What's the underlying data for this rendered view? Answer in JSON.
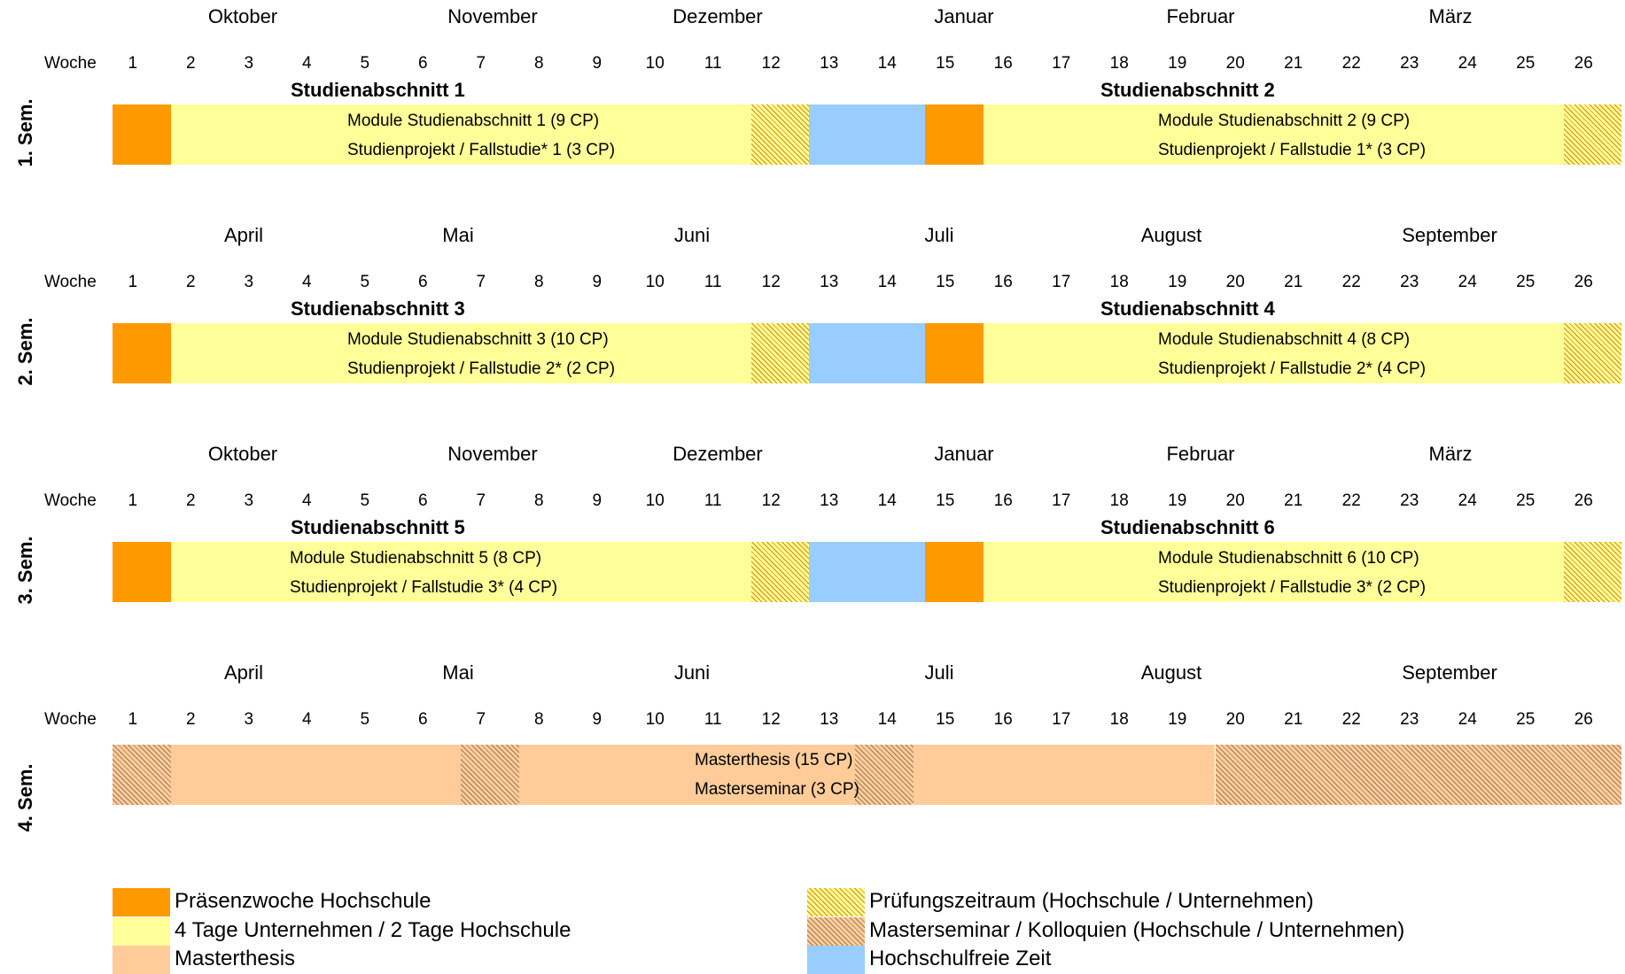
{
  "week_label": "Woche",
  "weeks": [
    "1",
    "2",
    "3",
    "4",
    "5",
    "6",
    "7",
    "8",
    "9",
    "10",
    "11",
    "12",
    "13",
    "14",
    "15",
    "16",
    "17",
    "18",
    "19",
    "20",
    "21",
    "22",
    "23",
    "24",
    "25",
    "26"
  ],
  "colors": {
    "praesenz": "#ff9900",
    "unternehmen": "#ffff99",
    "masterthesis": "#ffcc99",
    "hochschulfrei": "#99ccff",
    "pruefung_hatch": "#d98800",
    "seminar_hatch": "#9a7a5a"
  },
  "semesters": [
    {
      "label": "1. Sem.",
      "months": [
        "Oktober",
        "November",
        "Dezember",
        "Januar",
        "Februar",
        "März"
      ],
      "sections": [
        {
          "title": "Studienabschnitt 1",
          "line1": "Module Studienabschnitt 1 (9 CP)",
          "line2": "Studienprojekt / Fallstudie* 1 (3 CP)"
        },
        {
          "title": "Studienabschnitt 2",
          "line1": "Module Studienabschnitt 2 (9 CP)",
          "line2": "Studienprojekt / Fallstudie 1* (3 CP)"
        }
      ]
    },
    {
      "label": "2. Sem.",
      "months": [
        "April",
        "Mai",
        "Juni",
        "Juli",
        "August",
        "September"
      ],
      "sections": [
        {
          "title": "Studienabschnitt 3",
          "line1": "Module Studienabschnitt 3 (10 CP)",
          "line2": "Studienprojekt / Fallstudie 2* (2 CP)"
        },
        {
          "title": "Studienabschnitt 4",
          "line1": "Module Studienabschnitt 4 (8 CP)",
          "line2": "Studienprojekt / Fallstudie 2* (4 CP)"
        }
      ]
    },
    {
      "label": "3. Sem.",
      "months": [
        "Oktober",
        "November",
        "Dezember",
        "Januar",
        "Februar",
        "März"
      ],
      "sections": [
        {
          "title": "Studienabschnitt 5",
          "line1": "Module Studienabschnitt 5 (8 CP)",
          "line2": "Studienprojekt / Fallstudie 3* (4 CP)"
        },
        {
          "title": "Studienabschnitt 6",
          "line1": "Module Studienabschnitt 6 (10 CP)",
          "line2": "Studienprojekt / Fallstudie 3* (2 CP)"
        }
      ]
    },
    {
      "label": "4. Sem.",
      "months": [
        "April",
        "Mai",
        "Juni",
        "Juli",
        "August",
        "September"
      ],
      "thesis_line1": "Masterthesis (15 CP)",
      "thesis_line2": "Masterseminar (3 CP)"
    }
  ],
  "legend": [
    {
      "key": "praesenz",
      "label": "Präsenzwoche Hochschule"
    },
    {
      "key": "unt",
      "label": "4 Tage Unternehmen / 2 Tage Hochschule"
    },
    {
      "key": "thesis",
      "label": "Masterthesis"
    },
    {
      "key": "pruef",
      "label": "Prüfungszeitraum (Hochschule / Unternehmen)"
    },
    {
      "key": "seminar",
      "label": "Masterseminar / Kolloquien (Hochschule / Unternehmen)"
    },
    {
      "key": "frei",
      "label": "Hochschulfreie Zeit"
    }
  ]
}
